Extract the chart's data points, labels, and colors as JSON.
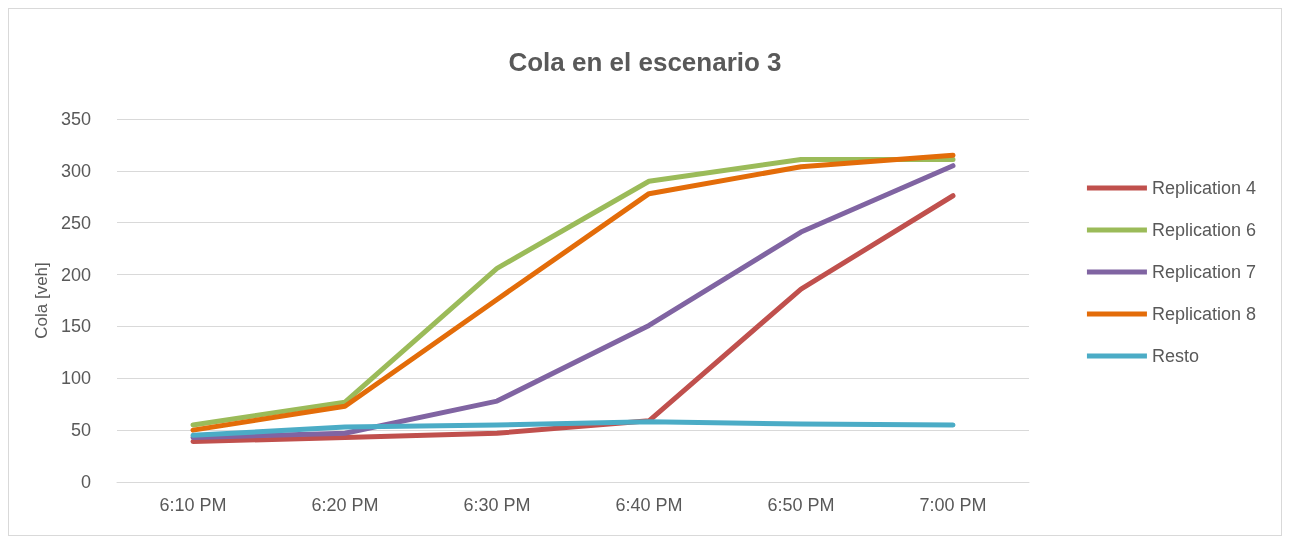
{
  "chart_data": {
    "type": "line",
    "title": "Cola en el escenario 3",
    "ylabel": "Cola [veh]",
    "categories": [
      "6:10 PM",
      "6:20 PM",
      "6:30 PM",
      "6:40 PM",
      "6:50 PM",
      "7:00 PM"
    ],
    "series": [
      {
        "name": "Replication 4",
        "color": "#c0504d",
        "values": [
          39,
          43,
          47,
          59,
          186,
          276
        ]
      },
      {
        "name": "Replication 6",
        "color": "#9bbb59",
        "values": [
          55,
          77,
          206,
          290,
          311,
          311
        ]
      },
      {
        "name": "Replication 7",
        "color": "#8064a2",
        "values": [
          43,
          47,
          78,
          151,
          241,
          305
        ]
      },
      {
        "name": "Replication 8",
        "color": "#e36c09",
        "values": [
          50,
          73,
          176,
          278,
          304,
          315
        ]
      },
      {
        "name": "Resto",
        "color": "#4bacc6",
        "values": [
          45,
          53,
          55,
          58,
          56,
          55
        ]
      }
    ],
    "ylim": [
      0,
      350
    ],
    "yticks": [
      0,
      50,
      100,
      150,
      200,
      250,
      300,
      350
    ],
    "grid": "y",
    "legend": "right",
    "marker": "none",
    "line_style": "solid"
  }
}
